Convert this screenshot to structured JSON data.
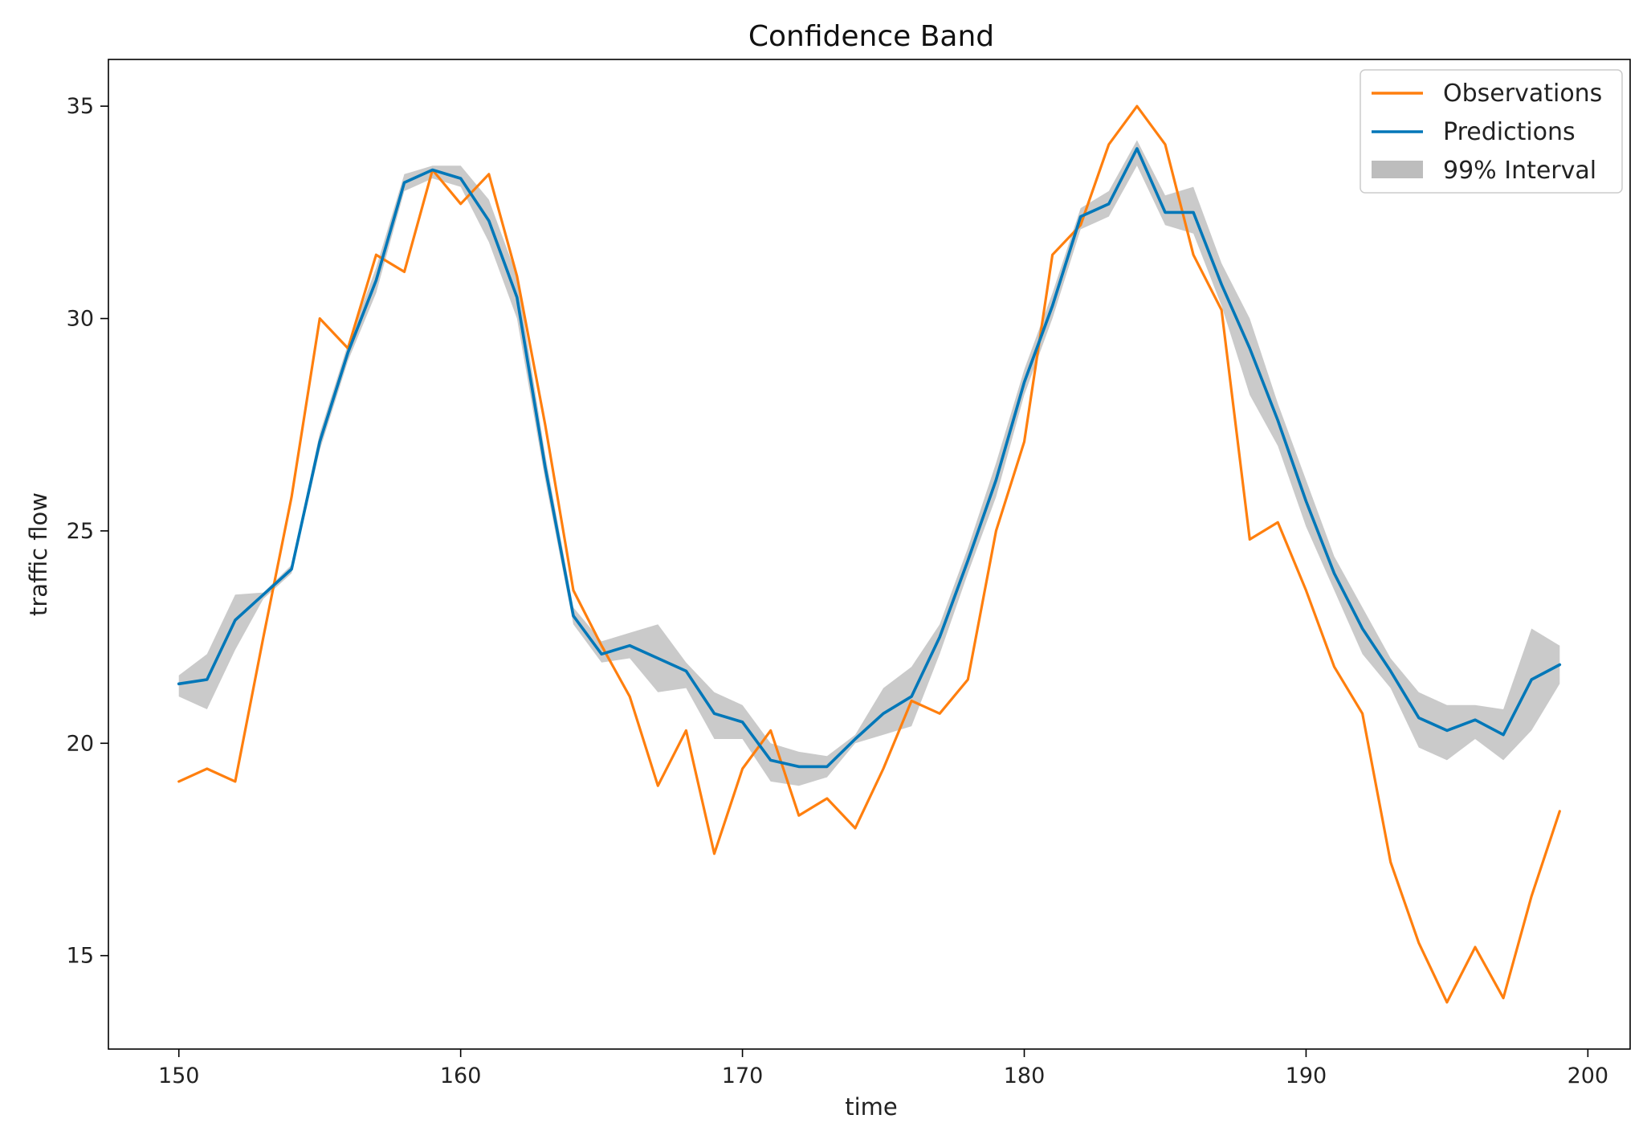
{
  "chart_data": {
    "type": "line",
    "title": "Confidence Band",
    "xlabel": "time",
    "ylabel": "traffic flow",
    "xlim": [
      147.5,
      201.5
    ],
    "ylim": [
      12.8,
      36.1
    ],
    "xticks": [
      150,
      160,
      170,
      180,
      190,
      200
    ],
    "yticks": [
      15,
      20,
      25,
      30,
      35
    ],
    "grid": false,
    "legend_position": "top-right",
    "x": [
      150,
      151,
      152,
      153,
      154,
      155,
      156,
      157,
      158,
      159,
      160,
      161,
      162,
      163,
      164,
      165,
      166,
      167,
      168,
      169,
      170,
      171,
      172,
      173,
      174,
      175,
      176,
      177,
      178,
      179,
      180,
      181,
      182,
      183,
      184,
      185,
      186,
      187,
      188,
      189,
      190,
      191,
      192,
      193,
      194,
      195,
      196,
      197,
      198,
      199
    ],
    "series": [
      {
        "name": "Observations",
        "color": "#ff7f0e",
        "values": [
          19.1,
          19.4,
          19.1,
          22.5,
          25.8,
          30.0,
          29.3,
          31.5,
          31.1,
          33.5,
          32.7,
          33.4,
          31.0,
          27.5,
          23.6,
          22.3,
          21.1,
          19.0,
          20.3,
          17.4,
          19.4,
          20.3,
          18.3,
          18.7,
          18.0,
          19.4,
          21.0,
          20.7,
          21.5,
          25.0,
          27.1,
          31.5,
          32.2,
          34.1,
          35.0,
          34.1,
          31.5,
          30.2,
          24.8,
          25.2,
          23.6,
          21.8,
          20.7,
          17.2,
          15.3,
          13.9,
          15.2,
          14.0,
          16.4,
          18.4
        ]
      },
      {
        "name": "Predictions",
        "color": "#0077b8",
        "values": [
          21.4,
          21.5,
          22.9,
          23.5,
          24.1,
          27.1,
          29.2,
          30.9,
          33.2,
          33.5,
          33.3,
          32.3,
          30.5,
          26.5,
          23.0,
          22.1,
          22.3,
          22.0,
          21.7,
          20.7,
          20.5,
          19.6,
          19.45,
          19.45,
          20.1,
          20.7,
          21.1,
          22.5,
          24.3,
          26.2,
          28.5,
          30.3,
          32.4,
          32.7,
          34.0,
          32.5,
          32.5,
          30.8,
          29.3,
          27.6,
          25.7,
          24.0,
          22.7,
          21.7,
          20.6,
          20.3,
          20.55,
          20.2,
          21.5,
          21.85
        ]
      }
    ],
    "band": {
      "name": "99% Interval",
      "color": "#bdbdbd",
      "lower": [
        21.1,
        20.8,
        22.2,
        23.4,
        24.0,
        26.9,
        29.0,
        30.6,
        33.0,
        33.3,
        33.1,
        31.8,
        30.0,
        26.2,
        22.8,
        21.9,
        22.0,
        21.2,
        21.3,
        20.1,
        20.1,
        19.1,
        19.0,
        19.2,
        20.0,
        20.2,
        20.4,
        22.1,
        24.0,
        25.8,
        28.2,
        30.0,
        32.1,
        32.4,
        33.6,
        32.2,
        32.0,
        30.3,
        28.2,
        27.0,
        25.1,
        23.6,
        22.1,
        21.3,
        19.9,
        19.6,
        20.1,
        19.6,
        20.3,
        21.4
      ],
      "upper": [
        21.6,
        22.1,
        23.5,
        23.55,
        24.2,
        27.3,
        29.4,
        31.2,
        33.4,
        33.6,
        33.6,
        32.8,
        31.0,
        26.8,
        23.2,
        22.4,
        22.6,
        22.8,
        21.9,
        21.2,
        20.9,
        20.0,
        19.8,
        19.7,
        20.2,
        21.3,
        21.8,
        22.8,
        24.6,
        26.6,
        28.8,
        30.6,
        32.6,
        33.0,
        34.2,
        32.9,
        33.1,
        31.3,
        30.0,
        28.0,
        26.2,
        24.4,
        23.2,
        22.0,
        21.2,
        20.9,
        20.9,
        20.8,
        22.7,
        22.3
      ]
    }
  }
}
